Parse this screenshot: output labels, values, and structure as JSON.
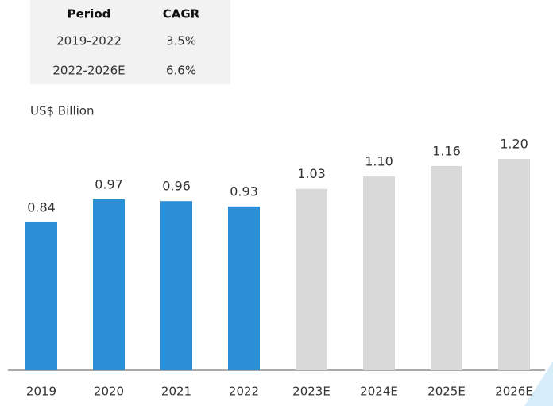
{
  "table": {
    "header": [
      "Period",
      "CAGR"
    ],
    "rows": [
      [
        "2019-2022",
        "3.5%"
      ],
      [
        "2022-2026E",
        "6.6%"
      ]
    ]
  },
  "chart_data": {
    "type": "bar",
    "y_label": "US$ Billion",
    "categories": [
      "2019",
      "2020",
      "2021",
      "2022",
      "2023E",
      "2024E",
      "2025E",
      "2026E"
    ],
    "values": [
      0.84,
      0.97,
      0.96,
      0.93,
      1.03,
      1.1,
      1.16,
      1.2
    ],
    "value_labels": [
      "0.84",
      "0.97",
      "0.96",
      "0.93",
      "1.03",
      "1.10",
      "1.16",
      "1.20"
    ],
    "colors": [
      "#2a8fd4",
      "#2a8fd4",
      "#2a8fd4",
      "#2a8fd4",
      "#d9d9d9",
      "#d9d9d9",
      "#d9d9d9",
      "#d9d9d9"
    ]
  }
}
